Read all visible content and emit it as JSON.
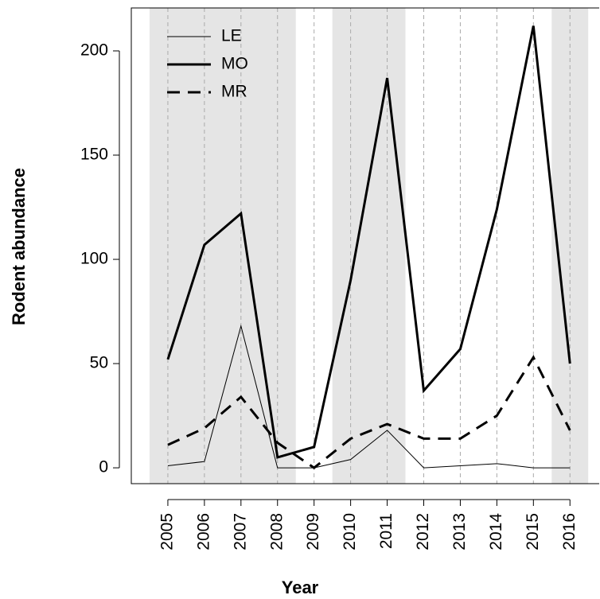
{
  "chart_data": {
    "type": "line",
    "x_label": "Year",
    "y_label": "Rodent abundance",
    "x": [
      2005,
      2006,
      2007,
      2008,
      2009,
      2010,
      2011,
      2012,
      2013,
      2014,
      2015,
      2016
    ],
    "series": [
      {
        "name": "LE",
        "color": "#000000",
        "width": 1,
        "dash": "solid",
        "values": [
          1,
          3,
          68,
          0,
          0,
          4,
          18,
          0,
          1,
          2,
          0,
          0
        ]
      },
      {
        "name": "MO",
        "color": "#000000",
        "width": 3,
        "dash": "solid",
        "values": [
          52,
          107,
          122,
          5,
          10,
          90,
          187,
          37,
          57,
          124,
          212,
          50
        ]
      },
      {
        "name": "MR",
        "color": "#000000",
        "width": 3,
        "dash": "dashed",
        "values": [
          11,
          19,
          34,
          12,
          0,
          14,
          21,
          14,
          14,
          25,
          53,
          18
        ]
      }
    ],
    "xlim": [
      2004,
      2016.8
    ],
    "ylim": [
      -7.6,
      220.6
    ],
    "xticks": [
      2005,
      2006,
      2007,
      2008,
      2009,
      2010,
      2011,
      2012,
      2013,
      2014,
      2015,
      2016
    ],
    "yticks": [
      0,
      50,
      100,
      150,
      200
    ],
    "shaded_ranges": [
      [
        2004.5,
        2008.5
      ],
      [
        2009.5,
        2011.5
      ],
      [
        2015.5,
        2016.5
      ]
    ],
    "grid": true,
    "legend": "top-left"
  }
}
